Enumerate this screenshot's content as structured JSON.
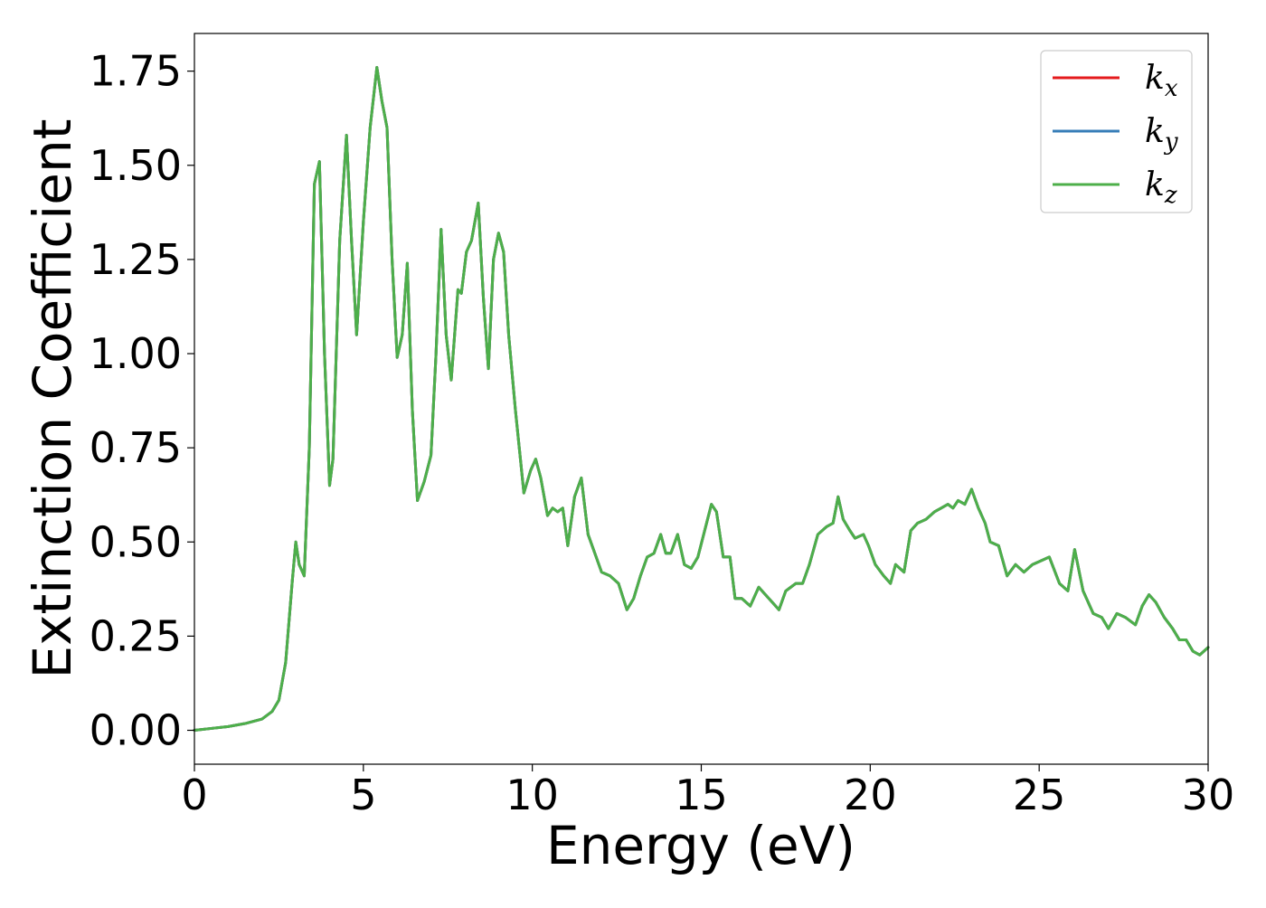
{
  "chart_data": {
    "type": "line",
    "title": "",
    "xlabel": "Energy (eV)",
    "ylabel": "Extinction Coefficient",
    "xlim": [
      0,
      30
    ],
    "ylim": [
      -0.09,
      1.85
    ],
    "xticks": [
      0,
      5,
      10,
      15,
      20,
      25,
      30
    ],
    "xtick_labels": [
      "0",
      "5",
      "10",
      "15",
      "20",
      "25",
      "30"
    ],
    "yticks": [
      0,
      0.25,
      0.5,
      0.75,
      1.0,
      1.25,
      1.5,
      1.75
    ],
    "ytick_labels": [
      "0.00",
      "0.25",
      "0.50",
      "0.75",
      "1.00",
      "1.25",
      "1.50",
      "1.75"
    ],
    "grid": false,
    "legend_position": "top-right",
    "x": [
      0,
      0.5,
      1.0,
      1.5,
      2.0,
      2.3,
      2.5,
      2.7,
      2.9,
      3.0,
      3.1,
      3.25,
      3.4,
      3.55,
      3.7,
      3.85,
      4.0,
      4.1,
      4.3,
      4.5,
      4.65,
      4.8,
      5.0,
      5.2,
      5.4,
      5.55,
      5.7,
      5.85,
      6.0,
      6.15,
      6.3,
      6.45,
      6.6,
      6.8,
      7.0,
      7.15,
      7.3,
      7.45,
      7.6,
      7.8,
      7.9,
      8.05,
      8.2,
      8.4,
      8.55,
      8.7,
      8.85,
      9.0,
      9.15,
      9.3,
      9.5,
      9.75,
      9.95,
      10.1,
      10.25,
      10.45,
      10.6,
      10.75,
      10.9,
      11.05,
      11.25,
      11.45,
      11.65,
      11.85,
      12.05,
      12.3,
      12.55,
      12.8,
      13.0,
      13.2,
      13.4,
      13.6,
      13.8,
      13.95,
      14.1,
      14.3,
      14.5,
      14.7,
      14.9,
      15.1,
      15.3,
      15.45,
      15.65,
      15.85,
      16.0,
      16.2,
      16.45,
      16.7,
      16.9,
      17.1,
      17.3,
      17.5,
      17.65,
      17.8,
      18.0,
      18.2,
      18.45,
      18.7,
      18.9,
      19.05,
      19.2,
      19.4,
      19.55,
      19.8,
      19.95,
      20.15,
      20.4,
      20.6,
      20.75,
      21.0,
      21.2,
      21.4,
      21.65,
      21.9,
      22.1,
      22.3,
      22.45,
      22.6,
      22.8,
      23.0,
      23.2,
      23.4,
      23.55,
      23.8,
      24.05,
      24.3,
      24.55,
      24.8,
      25.05,
      25.3,
      25.6,
      25.85,
      26.05,
      26.3,
      26.6,
      26.85,
      27.05,
      27.3,
      27.55,
      27.85,
      28.05,
      28.25,
      28.45,
      28.7,
      28.95,
      29.15,
      29.35,
      29.55,
      29.75,
      30.0
    ],
    "series": [
      {
        "name": "k_x",
        "color": "#e41a1c",
        "values": [
          0.0,
          0.005,
          0.01,
          0.018,
          0.03,
          0.05,
          0.08,
          0.18,
          0.4,
          0.5,
          0.44,
          0.41,
          0.75,
          1.45,
          1.51,
          1.0,
          0.65,
          0.72,
          1.3,
          1.58,
          1.3,
          1.05,
          1.35,
          1.6,
          1.76,
          1.67,
          1.6,
          1.25,
          0.99,
          1.05,
          1.24,
          0.85,
          0.61,
          0.66,
          0.73,
          1.0,
          1.33,
          1.05,
          0.93,
          1.17,
          1.16,
          1.27,
          1.3,
          1.4,
          1.15,
          0.96,
          1.25,
          1.32,
          1.27,
          1.05,
          0.85,
          0.63,
          0.69,
          0.72,
          0.67,
          0.57,
          0.59,
          0.58,
          0.59,
          0.49,
          0.62,
          0.67,
          0.52,
          0.47,
          0.42,
          0.41,
          0.39,
          0.32,
          0.35,
          0.41,
          0.46,
          0.47,
          0.52,
          0.47,
          0.47,
          0.52,
          0.44,
          0.43,
          0.46,
          0.53,
          0.6,
          0.58,
          0.46,
          0.46,
          0.35,
          0.35,
          0.33,
          0.38,
          0.36,
          0.34,
          0.32,
          0.37,
          0.38,
          0.39,
          0.39,
          0.44,
          0.52,
          0.54,
          0.55,
          0.62,
          0.56,
          0.53,
          0.51,
          0.52,
          0.49,
          0.44,
          0.41,
          0.39,
          0.44,
          0.42,
          0.53,
          0.55,
          0.56,
          0.58,
          0.59,
          0.6,
          0.59,
          0.61,
          0.6,
          0.64,
          0.59,
          0.55,
          0.5,
          0.49,
          0.41,
          0.44,
          0.42,
          0.44,
          0.45,
          0.46,
          0.39,
          0.37,
          0.48,
          0.37,
          0.31,
          0.3,
          0.27,
          0.31,
          0.3,
          0.28,
          0.33,
          0.36,
          0.34,
          0.3,
          0.27,
          0.24,
          0.24,
          0.21,
          0.2,
          0.22
        ]
      },
      {
        "name": "k_y",
        "color": "#377eb8",
        "values": [
          0.0,
          0.005,
          0.01,
          0.018,
          0.03,
          0.05,
          0.08,
          0.18,
          0.4,
          0.5,
          0.44,
          0.41,
          0.75,
          1.45,
          1.51,
          1.0,
          0.65,
          0.72,
          1.3,
          1.58,
          1.3,
          1.05,
          1.35,
          1.6,
          1.76,
          1.67,
          1.6,
          1.25,
          0.99,
          1.05,
          1.24,
          0.85,
          0.61,
          0.66,
          0.73,
          1.0,
          1.33,
          1.05,
          0.93,
          1.17,
          1.16,
          1.27,
          1.3,
          1.4,
          1.15,
          0.96,
          1.25,
          1.32,
          1.27,
          1.05,
          0.85,
          0.63,
          0.69,
          0.72,
          0.67,
          0.57,
          0.59,
          0.58,
          0.59,
          0.49,
          0.62,
          0.67,
          0.52,
          0.47,
          0.42,
          0.41,
          0.39,
          0.32,
          0.35,
          0.41,
          0.46,
          0.47,
          0.52,
          0.47,
          0.47,
          0.52,
          0.44,
          0.43,
          0.46,
          0.53,
          0.6,
          0.58,
          0.46,
          0.46,
          0.35,
          0.35,
          0.33,
          0.38,
          0.36,
          0.34,
          0.32,
          0.37,
          0.38,
          0.39,
          0.39,
          0.44,
          0.52,
          0.54,
          0.55,
          0.62,
          0.56,
          0.53,
          0.51,
          0.52,
          0.49,
          0.44,
          0.41,
          0.39,
          0.44,
          0.42,
          0.53,
          0.55,
          0.56,
          0.58,
          0.59,
          0.6,
          0.59,
          0.61,
          0.6,
          0.64,
          0.59,
          0.55,
          0.5,
          0.49,
          0.41,
          0.44,
          0.42,
          0.44,
          0.45,
          0.46,
          0.39,
          0.37,
          0.48,
          0.37,
          0.31,
          0.3,
          0.27,
          0.31,
          0.3,
          0.28,
          0.33,
          0.36,
          0.34,
          0.3,
          0.27,
          0.24,
          0.24,
          0.21,
          0.2,
          0.22
        ]
      },
      {
        "name": "k_z",
        "color": "#4daf4a",
        "values": [
          0.0,
          0.005,
          0.01,
          0.018,
          0.03,
          0.05,
          0.08,
          0.18,
          0.4,
          0.5,
          0.44,
          0.41,
          0.75,
          1.45,
          1.51,
          1.0,
          0.65,
          0.72,
          1.3,
          1.58,
          1.3,
          1.05,
          1.35,
          1.6,
          1.76,
          1.67,
          1.6,
          1.25,
          0.99,
          1.05,
          1.24,
          0.85,
          0.61,
          0.66,
          0.73,
          1.0,
          1.33,
          1.05,
          0.93,
          1.17,
          1.16,
          1.27,
          1.3,
          1.4,
          1.15,
          0.96,
          1.25,
          1.32,
          1.27,
          1.05,
          0.85,
          0.63,
          0.69,
          0.72,
          0.67,
          0.57,
          0.59,
          0.58,
          0.59,
          0.49,
          0.62,
          0.67,
          0.52,
          0.47,
          0.42,
          0.41,
          0.39,
          0.32,
          0.35,
          0.41,
          0.46,
          0.47,
          0.52,
          0.47,
          0.47,
          0.52,
          0.44,
          0.43,
          0.46,
          0.53,
          0.6,
          0.58,
          0.46,
          0.46,
          0.35,
          0.35,
          0.33,
          0.38,
          0.36,
          0.34,
          0.32,
          0.37,
          0.38,
          0.39,
          0.39,
          0.44,
          0.52,
          0.54,
          0.55,
          0.62,
          0.56,
          0.53,
          0.51,
          0.52,
          0.49,
          0.44,
          0.41,
          0.39,
          0.44,
          0.42,
          0.53,
          0.55,
          0.56,
          0.58,
          0.59,
          0.6,
          0.59,
          0.61,
          0.6,
          0.64,
          0.59,
          0.55,
          0.5,
          0.49,
          0.41,
          0.44,
          0.42,
          0.44,
          0.45,
          0.46,
          0.39,
          0.37,
          0.48,
          0.37,
          0.31,
          0.3,
          0.27,
          0.31,
          0.3,
          0.28,
          0.33,
          0.36,
          0.34,
          0.3,
          0.27,
          0.24,
          0.24,
          0.21,
          0.2,
          0.22
        ]
      }
    ],
    "legend": [
      {
        "base": "k",
        "sub": "x",
        "color": "#e41a1c"
      },
      {
        "base": "k",
        "sub": "y",
        "color": "#377eb8"
      },
      {
        "base": "k",
        "sub": "z",
        "color": "#4daf4a"
      }
    ]
  }
}
